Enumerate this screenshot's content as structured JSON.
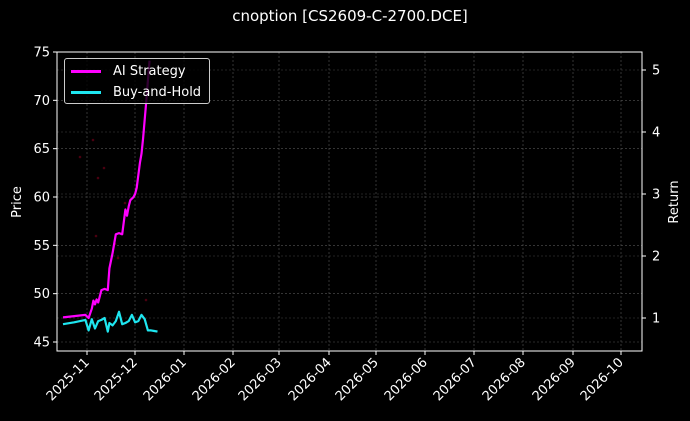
{
  "chart_data": {
    "type": "line",
    "title": "cnoption [CS2609-C-2700.DCE]",
    "xlabel": "",
    "ylabel": "Price",
    "y2label": "Return",
    "ylim": [
      44.3,
      75
    ],
    "y2lim": [
      0.55,
      5.25
    ],
    "yticks": [
      45,
      50,
      55,
      60,
      65,
      70,
      75
    ],
    "y2ticks": [
      1,
      2,
      3,
      4,
      5
    ],
    "xticks": [
      "2025-11",
      "2025-12",
      "2026-01",
      "2026-02",
      "2026-03",
      "2026-04",
      "2026-05",
      "2026-06",
      "2026-07",
      "2026-08",
      "2026-09",
      "2026-10"
    ],
    "grid": true,
    "legend_position": "upper left",
    "series": [
      {
        "name": "AI Strategy",
        "color": "#ff00ff",
        "axis": "right",
        "x": [
          "2025-10-17",
          "2025-10-24",
          "2025-10-31",
          "2025-11-02",
          "2025-11-04",
          "2025-11-05",
          "2025-11-06",
          "2025-11-07",
          "2025-11-08",
          "2025-11-10",
          "2025-11-12",
          "2025-11-14",
          "2025-11-15",
          "2025-11-17",
          "2025-11-19",
          "2025-11-21",
          "2025-11-23",
          "2025-11-24",
          "2025-11-25",
          "2025-11-26",
          "2025-11-27",
          "2025-11-28",
          "2025-11-30",
          "2025-12-01",
          "2025-12-02",
          "2025-12-04",
          "2025-12-05",
          "2025-12-06",
          "2025-12-08",
          "2025-12-10"
        ],
        "values": [
          1.01,
          1.03,
          1.05,
          1.0,
          1.15,
          1.28,
          1.22,
          1.3,
          1.25,
          1.45,
          1.47,
          1.45,
          1.8,
          2.05,
          2.35,
          2.37,
          2.35,
          2.55,
          2.75,
          2.65,
          2.8,
          2.9,
          2.95,
          3.0,
          3.1,
          3.5,
          3.65,
          3.9,
          4.5,
          5.15
        ]
      },
      {
        "name": "Buy-and-Hold",
        "color": "#1ee6f0",
        "axis": "right",
        "x": [
          "2025-10-17",
          "2025-10-24",
          "2025-10-31",
          "2025-11-02",
          "2025-11-04",
          "2025-11-06",
          "2025-11-08",
          "2025-11-10",
          "2025-11-12",
          "2025-11-14",
          "2025-11-15",
          "2025-11-17",
          "2025-11-19",
          "2025-11-21",
          "2025-11-23",
          "2025-11-25",
          "2025-11-27",
          "2025-11-29",
          "2025-12-01",
          "2025-12-03",
          "2025-12-05",
          "2025-12-07",
          "2025-12-09",
          "2025-12-11",
          "2025-12-13",
          "2025-12-15"
        ],
        "values": [
          0.9,
          0.93,
          0.97,
          0.8,
          0.98,
          0.83,
          0.95,
          0.97,
          1.0,
          0.78,
          0.92,
          0.88,
          0.95,
          1.1,
          0.9,
          0.92,
          0.95,
          1.05,
          0.93,
          0.95,
          1.05,
          0.98,
          0.8,
          0.8,
          0.79,
          0.78
        ]
      }
    ]
  },
  "legend": {
    "items": [
      {
        "label": "AI Strategy",
        "color": "#ff00ff"
      },
      {
        "label": "Buy-and-Hold",
        "color": "#1ee6f0"
      }
    ]
  }
}
